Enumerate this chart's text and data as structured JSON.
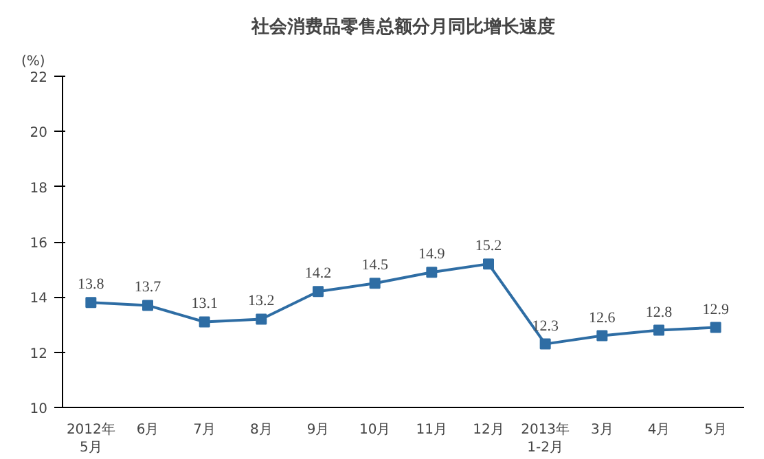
{
  "chart_data": {
    "type": "line",
    "title": "社会消费品零售总额分月同比增长速度",
    "ylabel": "(%)",
    "categories": [
      "2012年\n5月",
      "6月",
      "7月",
      "8月",
      "9月",
      "10月",
      "11月",
      "12月",
      "2013年\n1-2月",
      "3月",
      "4月",
      "5月"
    ],
    "series": [
      {
        "color": "#2e6da4",
        "values": [
          13.8,
          13.7,
          13.1,
          13.2,
          14.2,
          14.5,
          14.9,
          15.2,
          12.3,
          12.6,
          12.8,
          12.9
        ]
      }
    ],
    "ylim": [
      10,
      22
    ],
    "yticks": [
      10,
      12,
      14,
      16,
      18,
      20,
      22
    ],
    "marker": "square",
    "data_labels": true,
    "grid": false
  }
}
